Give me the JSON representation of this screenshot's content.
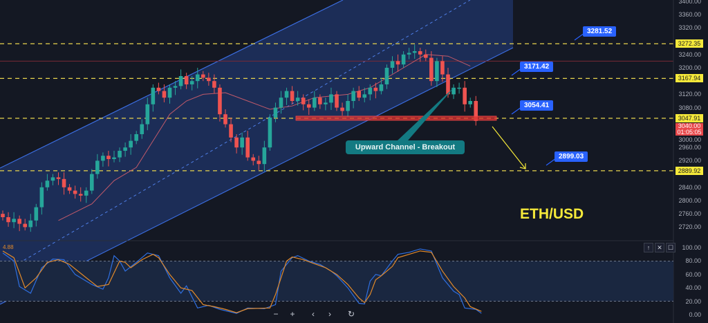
{
  "chart_data": {
    "type": "candlestick",
    "title": "ETH/USD",
    "price_axis": {
      "ticks": [
        "3400.00",
        "3360.00",
        "3320.00",
        "3240.00",
        "3200.00",
        "3120.00",
        "3080.00",
        "3000.00",
        "2960.00",
        "2920.00",
        "2840.00",
        "2800.00",
        "2760.00",
        "2720.00"
      ],
      "ylim": [
        2700,
        3410
      ]
    },
    "candles": {
      "first_open": 2760,
      "close": [
        2750,
        2735,
        2745,
        2730,
        2720,
        2740,
        2780,
        2840,
        2860,
        2870,
        2865,
        2840,
        2830,
        2820,
        2815,
        2830,
        2880,
        2920,
        2935,
        2925,
        2930,
        2950,
        2960,
        2980,
        3000,
        3030,
        3090,
        3140,
        3130,
        3110,
        3140,
        3145,
        3175,
        3150,
        3160,
        3180,
        3170,
        3160,
        3140,
        3060,
        3030,
        2990,
        2960,
        2990,
        2930,
        2920,
        2910,
        2960,
        3050,
        3080,
        3110,
        3130,
        3100,
        3110,
        3090,
        3080,
        3110,
        3090,
        3095,
        3120,
        3080,
        3070,
        3100,
        3130,
        3110,
        3120,
        3140,
        3130,
        3150,
        3200,
        3220,
        3210,
        3240,
        3245,
        3250,
        3240,
        3230,
        3160,
        3220,
        3180,
        3120,
        3140,
        3140,
        3090,
        3100,
        3040
      ],
      "up_color": "#26a69a",
      "down_color": "#ef5350"
    },
    "moving_average": [
      [
        10,
        2740
      ],
      [
        16,
        2790
      ],
      [
        20,
        2860
      ],
      [
        24,
        2900
      ],
      [
        27,
        2980
      ],
      [
        30,
        3060
      ],
      [
        33,
        3100
      ],
      [
        36,
        3120
      ],
      [
        40,
        3125
      ],
      [
        44,
        3100
      ],
      [
        48,
        3075
      ],
      [
        52,
        3085
      ],
      [
        56,
        3110
      ],
      [
        62,
        3120
      ],
      [
        66,
        3140
      ],
      [
        72,
        3200
      ],
      [
        76,
        3240
      ],
      [
        80,
        3235
      ],
      [
        84,
        3205
      ]
    ],
    "horizontal_levels": [
      {
        "price": 3272.35,
        "label": "3272.35"
      },
      {
        "price": 3167.94,
        "label": "3167.94"
      },
      {
        "price": 3047.91,
        "label": "3047.91"
      },
      {
        "price": 2889.92,
        "label": "2889.92"
      }
    ],
    "resistance_line_price": 3220,
    "breakout_zone_price": 3048,
    "current_price": {
      "label": "3040.00",
      "countdown": "01:05:05"
    },
    "targets": [
      {
        "label": "3281.52",
        "price": 3281.52
      },
      {
        "label": "3171.42",
        "price": 3171.42
      },
      {
        "label": "3054.41",
        "price": 3054.41
      },
      {
        "label": "2899.03",
        "price": 2899.03
      }
    ],
    "callout": "Upward Channel - Breakout",
    "pair_label": "ETH/USD",
    "stochastic": {
      "value_label": "4.88",
      "ticks": [
        "100.00",
        "80.00",
        "60.00",
        "40.00",
        "20.00",
        "0.00"
      ],
      "ylim": [
        0,
        100
      ],
      "band": [
        20,
        80
      ],
      "k": [
        [
          0,
          92
        ],
        [
          2,
          80
        ],
        [
          3,
          42
        ],
        [
          5,
          32
        ],
        [
          7,
          70
        ],
        [
          9,
          83
        ],
        [
          11,
          82
        ],
        [
          13,
          60
        ],
        [
          16,
          45
        ],
        [
          18,
          38
        ],
        [
          19,
          55
        ],
        [
          20,
          88
        ],
        [
          21,
          80
        ],
        [
          22,
          65
        ],
        [
          24,
          78
        ],
        [
          26,
          92
        ],
        [
          28,
          88
        ],
        [
          30,
          55
        ],
        [
          32,
          32
        ],
        [
          33,
          43
        ],
        [
          35,
          10
        ],
        [
          37,
          14
        ],
        [
          39,
          8
        ],
        [
          42,
          2
        ],
        [
          44,
          10
        ],
        [
          47,
          9
        ],
        [
          49,
          15
        ],
        [
          50,
          65
        ],
        [
          52,
          85
        ],
        [
          53,
          88
        ],
        [
          55,
          80
        ],
        [
          57,
          75
        ],
        [
          59,
          65
        ],
        [
          60,
          58
        ],
        [
          62,
          40
        ],
        [
          64,
          17
        ],
        [
          65,
          16
        ],
        [
          66,
          50
        ],
        [
          67,
          60
        ],
        [
          68,
          58
        ],
        [
          70,
          80
        ],
        [
          71,
          90
        ],
        [
          73,
          93
        ],
        [
          75,
          98
        ],
        [
          77,
          95
        ],
        [
          79,
          55
        ],
        [
          81,
          35
        ],
        [
          82,
          30
        ],
        [
          83,
          10
        ],
        [
          85,
          8
        ],
        [
          86,
          2
        ]
      ],
      "d": [
        [
          0,
          95
        ],
        [
          2,
          85
        ],
        [
          4,
          40
        ],
        [
          6,
          55
        ],
        [
          8,
          78
        ],
        [
          10,
          82
        ],
        [
          12,
          75
        ],
        [
          15,
          55
        ],
        [
          17,
          42
        ],
        [
          19,
          45
        ],
        [
          21,
          80
        ],
        [
          22,
          78
        ],
        [
          23,
          70
        ],
        [
          25,
          82
        ],
        [
          27,
          90
        ],
        [
          28,
          85
        ],
        [
          30,
          60
        ],
        [
          32,
          40
        ],
        [
          34,
          36
        ],
        [
          36,
          15
        ],
        [
          38,
          12
        ],
        [
          40,
          8
        ],
        [
          42,
          3
        ],
        [
          44,
          9
        ],
        [
          48,
          10
        ],
        [
          49,
          30
        ],
        [
          51,
          80
        ],
        [
          52,
          86
        ],
        [
          54,
          82
        ],
        [
          56,
          76
        ],
        [
          58,
          70
        ],
        [
          60,
          60
        ],
        [
          62,
          45
        ],
        [
          64,
          25
        ],
        [
          65,
          18
        ],
        [
          66,
          30
        ],
        [
          67,
          52
        ],
        [
          68,
          58
        ],
        [
          70,
          72
        ],
        [
          71,
          85
        ],
        [
          73,
          90
        ],
        [
          75,
          95
        ],
        [
          77,
          93
        ],
        [
          79,
          65
        ],
        [
          81,
          42
        ],
        [
          83,
          25
        ],
        [
          84,
          12
        ],
        [
          86,
          5
        ]
      ],
      "k_color": "#2f6fe0",
      "d_color": "#e38a2a"
    }
  },
  "pane_buttons": {
    "up": "↑",
    "close": "✕",
    "maximize": "☐"
  },
  "nav_buttons": {
    "zoom_out": "−",
    "zoom_in": "+",
    "prev": "‹",
    "next": "›",
    "reset": "↻"
  }
}
